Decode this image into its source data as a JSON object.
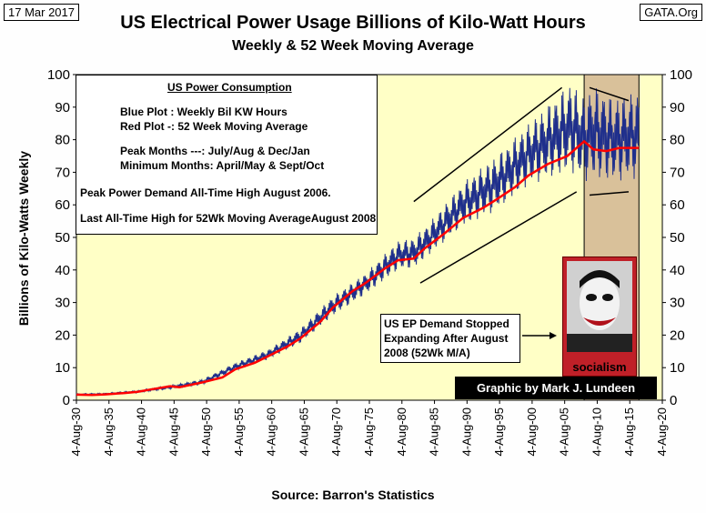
{
  "header": {
    "date": "17 Mar 2017",
    "site": "GATA.Org"
  },
  "title": "US Electrical Power Usage Billions of Kilo-Watt Hours",
  "subtitle": "Weekly & 52 Week Moving Average",
  "y_axis_label": "Billions of Kilo-Watts Weekly",
  "source": "Source: Barron's Statistics",
  "legend_box": {
    "title": "US Power Consumption",
    "blue": "Blue Plot  : Weekly Bil KW Hours",
    "red": "Red Plot -: 52 Week Moving Average",
    "peak": "Peak Months ---: July/Aug & Dec/Jan",
    "minimum": "Minimum Months: April/May & Sept/Oct",
    "demand_high": "Peak Power Demand All-Time High August 2006.",
    "ath_52wk": "Last All-Time High for 52Wk Moving AverageAugust 2008"
  },
  "callout": "US EP Demand Stopped Expanding After August 2008 (52Wk M/A)",
  "credit": "Graphic by Mark J. Lundeen",
  "portrait_caption": "socialism",
  "colors": {
    "plot_bg": "#ffffc6",
    "weekly": "#1f2f8c",
    "moving_avg": "#ff0000",
    "highlight": "#d9c19a",
    "trend": "#000000"
  },
  "chart_data": {
    "type": "line",
    "title": "US Electrical Power Usage Billions of Kilo-Watt Hours",
    "subtitle": "Weekly & 52 Week Moving Average",
    "xlabel": "",
    "ylabel": "Billions of Kilo-Watts Weekly",
    "x_range": [
      "1930-08-04",
      "2020-08-04"
    ],
    "ylim": [
      0,
      100
    ],
    "y_ticks": [
      0,
      10,
      20,
      30,
      40,
      50,
      60,
      70,
      80,
      90,
      100
    ],
    "y_axis_right": true,
    "x_ticks": [
      "4-Aug-30",
      "4-Aug-35",
      "4-Aug-40",
      "4-Aug-45",
      "4-Aug-50",
      "4-Aug-55",
      "4-Aug-60",
      "4-Aug-65",
      "4-Aug-70",
      "4-Aug-75",
      "4-Aug-80",
      "4-Aug-85",
      "4-Aug-90",
      "4-Aug-95",
      "4-Aug-00",
      "4-Aug-05",
      "4-Aug-10",
      "4-Aug-15",
      "4-Aug-20"
    ],
    "grid": false,
    "highlight_span": [
      "2008-08-01",
      "2016-12-31"
    ],
    "series": [
      {
        "name": "Weekly Bil KW Hours",
        "style": "weekly-band",
        "x": [
          "1930-08-04",
          "1935-01-01",
          "1940-01-01",
          "1945-01-01",
          "1950-01-01",
          "1955-01-01",
          "1960-01-01",
          "1965-01-01",
          "1970-01-01",
          "1975-01-01",
          "1980-01-01",
          "1982-06-01",
          "1985-01-01",
          "1990-01-01",
          "1995-01-01",
          "2000-01-01",
          "2006-08-01",
          "2008-08-01",
          "2010-01-01",
          "2013-01-01",
          "2016-12-31"
        ],
        "low": [
          1.5,
          1.7,
          2.3,
          3.5,
          4.8,
          9.0,
          12.5,
          17.5,
          26.0,
          32.5,
          40.0,
          40.5,
          45.0,
          53.5,
          58.0,
          66.0,
          70.0,
          67.0,
          68.0,
          67.0,
          68.0
        ],
        "high": [
          2.0,
          2.2,
          3.0,
          4.5,
          6.5,
          11.5,
          15.5,
          22.0,
          32.0,
          39.0,
          49.0,
          50.0,
          55.0,
          67.0,
          75.0,
          85.0,
          98.0,
          93.0,
          97.0,
          93.0,
          95.0
        ]
      },
      {
        "name": "52 Week Moving Average",
        "x": [
          "1930-08-04",
          "1933-01-01",
          "1935-01-01",
          "1938-01-01",
          "1940-01-01",
          "1942-01-01",
          "1945-01-01",
          "1946-06-01",
          "1950-01-01",
          "1953-01-01",
          "1955-01-01",
          "1958-01-01",
          "1960-01-01",
          "1963-01-01",
          "1965-01-01",
          "1968-01-01",
          "1970-01-01",
          "1973-01-01",
          "1975-01-01",
          "1978-01-01",
          "1980-01-01",
          "1982-06-01",
          "1984-01-01",
          "1987-01-01",
          "1990-01-01",
          "1993-01-01",
          "1995-01-01",
          "1998-01-01",
          "2000-01-01",
          "2003-01-01",
          "2006-01-01",
          "2008-08-01",
          "2010-01-01",
          "2012-01-01",
          "2014-01-01",
          "2016-12-31"
        ],
        "values": [
          1.7,
          1.6,
          1.8,
          2.2,
          2.6,
          3.3,
          4.3,
          4.0,
          5.5,
          7.0,
          9.5,
          11.5,
          13.5,
          16.5,
          19.0,
          24.0,
          28.5,
          33.5,
          36.0,
          40.5,
          43.0,
          43.5,
          46.5,
          51.0,
          56.0,
          59.0,
          61.5,
          65.5,
          69.0,
          72.5,
          75.0,
          79.5,
          77.0,
          76.5,
          77.5,
          77.5
        ]
      }
    ],
    "trend_lines": [
      {
        "from": [
          "1982-06-01",
          61
        ],
        "to": [
          "2005-03-01",
          96
        ]
      },
      {
        "from": [
          "1983-06-01",
          36
        ],
        "to": [
          "2007-06-01",
          64
        ]
      },
      {
        "from": [
          "2009-06-01",
          63
        ],
        "to": [
          "2015-06-01",
          64
        ]
      },
      {
        "from": [
          "2009-06-01",
          96
        ],
        "to": [
          "2015-06-01",
          92
        ]
      }
    ]
  }
}
